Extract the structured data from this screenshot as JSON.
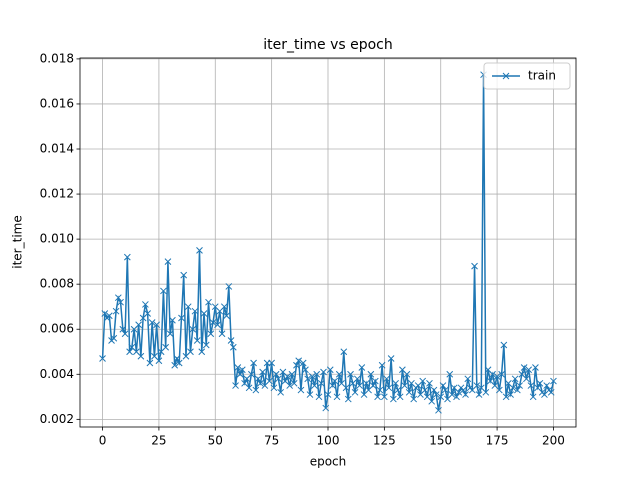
{
  "chart_data": {
    "type": "line",
    "title": "iter_time vs epoch",
    "xlabel": "epoch",
    "ylabel": "iter_time",
    "x": [
      0,
      1,
      2,
      3,
      4,
      5,
      6,
      7,
      8,
      9,
      10,
      11,
      12,
      13,
      14,
      15,
      16,
      17,
      18,
      19,
      20,
      21,
      22,
      23,
      24,
      25,
      26,
      27,
      28,
      29,
      30,
      31,
      32,
      33,
      34,
      35,
      36,
      37,
      38,
      39,
      40,
      41,
      42,
      43,
      44,
      45,
      46,
      47,
      48,
      49,
      50,
      51,
      52,
      53,
      54,
      55,
      56,
      57,
      58,
      59,
      60,
      61,
      62,
      63,
      64,
      65,
      66,
      67,
      68,
      69,
      70,
      71,
      72,
      73,
      74,
      75,
      76,
      77,
      78,
      79,
      80,
      81,
      82,
      83,
      84,
      85,
      86,
      87,
      88,
      89,
      90,
      91,
      92,
      93,
      94,
      95,
      96,
      97,
      98,
      99,
      100,
      101,
      102,
      103,
      104,
      105,
      106,
      107,
      108,
      109,
      110,
      111,
      112,
      113,
      114,
      115,
      116,
      117,
      118,
      119,
      120,
      121,
      122,
      123,
      124,
      125,
      126,
      127,
      128,
      129,
      130,
      131,
      132,
      133,
      134,
      135,
      136,
      137,
      138,
      139,
      140,
      141,
      142,
      143,
      144,
      145,
      146,
      147,
      148,
      149,
      150,
      151,
      152,
      153,
      154,
      155,
      156,
      157,
      158,
      159,
      160,
      161,
      162,
      163,
      164,
      165,
      166,
      167,
      168,
      169,
      170,
      171,
      172,
      173,
      174,
      175,
      176,
      177,
      178,
      179,
      180,
      181,
      182,
      183,
      184,
      185,
      186,
      187,
      188,
      189,
      190,
      191,
      192,
      193,
      194,
      195,
      196,
      197,
      198,
      199,
      200
    ],
    "series": [
      {
        "name": "train",
        "color": "#1f77b4",
        "values": [
          0.0047,
          0.0067,
          0.0065,
          0.0066,
          0.0055,
          0.0056,
          0.0068,
          0.0074,
          0.0072,
          0.006,
          0.0058,
          0.0092,
          0.005,
          0.0052,
          0.006,
          0.005,
          0.0062,
          0.0048,
          0.0065,
          0.0071,
          0.0067,
          0.0045,
          0.0063,
          0.0048,
          0.0062,
          0.0046,
          0.005,
          0.0077,
          0.0052,
          0.009,
          0.0058,
          0.0064,
          0.0044,
          0.0047,
          0.0045,
          0.0065,
          0.0084,
          0.0048,
          0.007,
          0.005,
          0.006,
          0.0068,
          0.0055,
          0.0095,
          0.005,
          0.0067,
          0.0053,
          0.0072,
          0.0058,
          0.0063,
          0.007,
          0.0062,
          0.0068,
          0.0058,
          0.007,
          0.0066,
          0.0079,
          0.0055,
          0.0052,
          0.0035,
          0.0043,
          0.004,
          0.0042,
          0.0036,
          0.0038,
          0.0034,
          0.004,
          0.0045,
          0.0033,
          0.0038,
          0.0036,
          0.0041,
          0.0035,
          0.0045,
          0.0037,
          0.0045,
          0.0034,
          0.004,
          0.0038,
          0.0032,
          0.0041,
          0.0037,
          0.0039,
          0.0035,
          0.004,
          0.0036,
          0.0044,
          0.0046,
          0.0033,
          0.0045,
          0.0042,
          0.0038,
          0.0031,
          0.0039,
          0.0035,
          0.004,
          0.003,
          0.0036,
          0.0041,
          0.0025,
          0.0031,
          0.0042,
          0.0035,
          0.0037,
          0.003,
          0.004,
          0.0036,
          0.005,
          0.0034,
          0.0029,
          0.004,
          0.0036,
          0.0032,
          0.0038,
          0.0035,
          0.0043,
          0.0031,
          0.0036,
          0.0033,
          0.004,
          0.0035,
          0.0037,
          0.003,
          0.0033,
          0.0044,
          0.003,
          0.0038,
          0.0034,
          0.0047,
          0.0029,
          0.0036,
          0.0033,
          0.003,
          0.0042,
          0.0035,
          0.004,
          0.0032,
          0.0036,
          0.0029,
          0.0034,
          0.0035,
          0.0031,
          0.0037,
          0.0033,
          0.003,
          0.0036,
          0.0028,
          0.0033,
          0.0031,
          0.0024,
          0.003,
          0.0035,
          0.0033,
          0.0029,
          0.004,
          0.0031,
          0.0034,
          0.003,
          0.0032,
          0.0034,
          0.0033,
          0.0031,
          0.0038,
          0.0034,
          0.0033,
          0.0088,
          0.0035,
          0.0031,
          0.0034,
          0.0173,
          0.0032,
          0.0042,
          0.0037,
          0.004,
          0.0035,
          0.0039,
          0.0033,
          0.004,
          0.0053,
          0.003,
          0.0036,
          0.0031,
          0.0034,
          0.0038,
          0.0033,
          0.0035,
          0.004,
          0.0043,
          0.0038,
          0.0042,
          0.0035,
          0.003,
          0.0043,
          0.0034,
          0.0036,
          0.0032,
          0.0031,
          0.0035,
          0.0033,
          0.0032,
          0.0037
        ]
      }
    ],
    "xlim": [
      -10,
      210
    ],
    "xticks": [
      0,
      25,
      50,
      75,
      100,
      125,
      150,
      175,
      200
    ],
    "ylim": [
      0.00166,
      0.01804
    ],
    "yticks": [
      0.002,
      0.004,
      0.006,
      0.008,
      {
        "value": 0.01,
        "label": "0.010"
      },
      0.012,
      0.014,
      0.016,
      0.018
    ],
    "grid": true,
    "legend": "upper right",
    "marker": "x"
  }
}
